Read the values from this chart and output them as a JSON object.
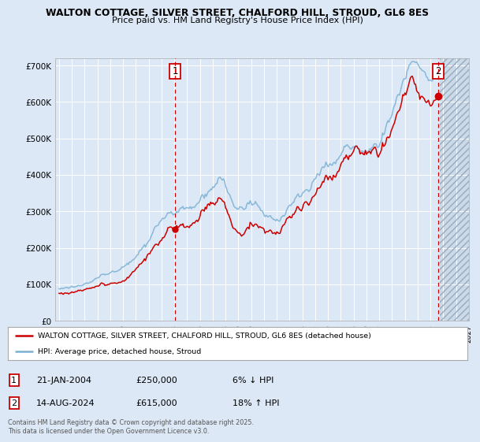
{
  "title_line1": "WALTON COTTAGE, SILVER STREET, CHALFORD HILL, STROUD, GL6 8ES",
  "title_line2": "Price paid vs. HM Land Registry's House Price Index (HPI)",
  "background_color": "#dce8f5",
  "legend_label_red": "WALTON COTTAGE, SILVER STREET, CHALFORD HILL, STROUD, GL6 8ES (detached house)",
  "legend_label_blue": "HPI: Average price, detached house, Stroud",
  "annotation1_label": "1",
  "annotation1_date": "21-JAN-2004",
  "annotation1_price": "£250,000",
  "annotation1_hpi": "6% ↓ HPI",
  "annotation2_label": "2",
  "annotation2_date": "14-AUG-2024",
  "annotation2_price": "£615,000",
  "annotation2_hpi": "18% ↑ HPI",
  "footer": "Contains HM Land Registry data © Crown copyright and database right 2025.\nThis data is licensed under the Open Government Licence v3.0.",
  "purchase1_year": 2004.055,
  "purchase1_value": 250000,
  "purchase2_year": 2024.617,
  "purchase2_value": 615000,
  "red_color": "#cc0000",
  "blue_color": "#7ab0d4",
  "vline_color": "#cc0000",
  "grid_color": "#ffffff",
  "xmin": 1994.7,
  "xmax": 2027.0,
  "ymin": 0,
  "ymax": 720000,
  "yticks": [
    0,
    100000,
    200000,
    300000,
    400000,
    500000,
    600000,
    700000
  ],
  "ytick_labels": [
    "£0",
    "£100K",
    "£200K",
    "£300K",
    "£400K",
    "£500K",
    "£600K",
    "£700K"
  ],
  "xticks": [
    1995,
    1996,
    1997,
    1998,
    1999,
    2000,
    2001,
    2002,
    2003,
    2004,
    2005,
    2006,
    2007,
    2008,
    2009,
    2010,
    2011,
    2012,
    2013,
    2014,
    2015,
    2016,
    2017,
    2018,
    2019,
    2020,
    2021,
    2022,
    2023,
    2024,
    2025,
    2026,
    2027
  ]
}
